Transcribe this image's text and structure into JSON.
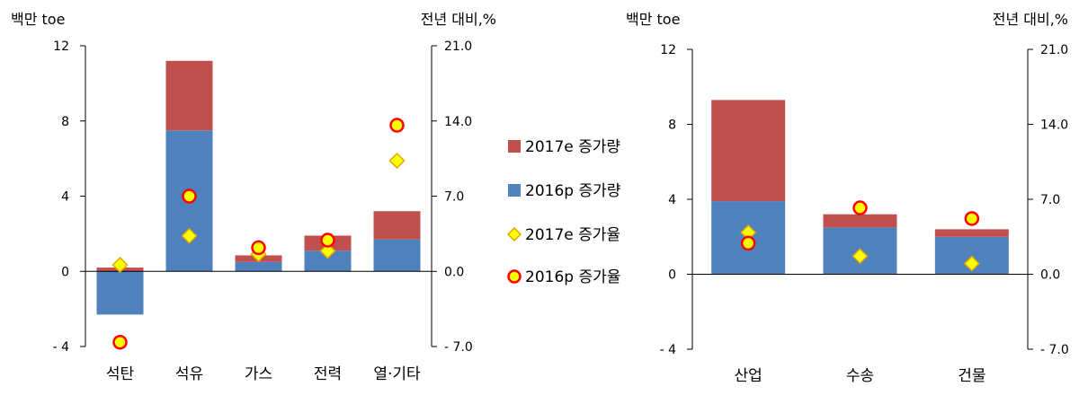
{
  "chart_data": [
    {
      "type": "bar",
      "stacked": true,
      "left_unit": "백만 toe",
      "right_unit": "전년 대비,%",
      "categories": [
        "석탄",
        "석유",
        "가스",
        "전력",
        "열·기타"
      ],
      "ylim_left": [
        -4,
        12
      ],
      "yticks_left": [
        "- 4",
        "0",
        "4",
        "8",
        "12"
      ],
      "yticks_left_values": [
        -4,
        0,
        4,
        8,
        12
      ],
      "ylim_right": [
        -7,
        21
      ],
      "yticks_right": [
        "- 7.0",
        "0.0",
        "7.0",
        "14.0",
        "21.0"
      ],
      "yticks_right_values": [
        -7,
        0,
        7,
        14,
        21
      ],
      "series": [
        {
          "name": "2016p 증가량",
          "kind": "bar",
          "axis": "left",
          "color": "#4f81bd",
          "values": [
            -2.3,
            7.5,
            0.5,
            1.1,
            1.7
          ]
        },
        {
          "name": "2017e 증가량",
          "kind": "bar",
          "axis": "left",
          "color": "#c0504d",
          "values": [
            0.2,
            3.7,
            0.35,
            0.8,
            1.5
          ]
        },
        {
          "name": "2017e 증가율",
          "kind": "marker",
          "marker": "diamond",
          "axis": "right",
          "values": [
            0.6,
            3.3,
            1.6,
            1.9,
            10.3
          ]
        },
        {
          "name": "2016p 증가율",
          "kind": "marker",
          "marker": "circle",
          "axis": "right",
          "values": [
            -6.6,
            7.0,
            2.2,
            2.9,
            13.6
          ]
        }
      ]
    },
    {
      "type": "bar",
      "stacked": true,
      "left_unit": "백만 toe",
      "right_unit": "전년 대비,%",
      "categories": [
        "산업",
        "수송",
        "건물"
      ],
      "ylim_left": [
        -4,
        12
      ],
      "yticks_left": [
        "- 4",
        "0",
        "4",
        "8",
        "12"
      ],
      "yticks_left_values": [
        -4,
        0,
        4,
        8,
        12
      ],
      "ylim_right": [
        -7,
        21
      ],
      "yticks_right": [
        "- 7.0",
        "0.0",
        "7.0",
        "14.0",
        "21.0"
      ],
      "yticks_right_values": [
        -7,
        0,
        7,
        14,
        21
      ],
      "series": [
        {
          "name": "2016p 증가량",
          "kind": "bar",
          "axis": "left",
          "color": "#4f81bd",
          "values": [
            3.9,
            2.5,
            2.0
          ]
        },
        {
          "name": "2017e 증가량",
          "kind": "bar",
          "axis": "left",
          "color": "#c0504d",
          "values": [
            5.4,
            0.7,
            0.4
          ]
        },
        {
          "name": "2017e 증가율",
          "kind": "marker",
          "marker": "diamond",
          "axis": "right",
          "values": [
            3.9,
            1.7,
            1.0
          ]
        },
        {
          "name": "2016p 증가율",
          "kind": "marker",
          "marker": "circle",
          "axis": "right",
          "values": [
            2.9,
            6.2,
            5.2
          ]
        }
      ]
    }
  ],
  "legend": [
    {
      "label": "2017e 증가량",
      "symbol": "square",
      "color": "#c0504d"
    },
    {
      "label": "2016p 증가량",
      "symbol": "square",
      "color": "#4f81bd"
    },
    {
      "label": "2017e 증가율",
      "symbol": "diamond",
      "color": "#ffff00"
    },
    {
      "label": "2016p 증가율",
      "symbol": "circle",
      "color": "#ffff00"
    }
  ]
}
